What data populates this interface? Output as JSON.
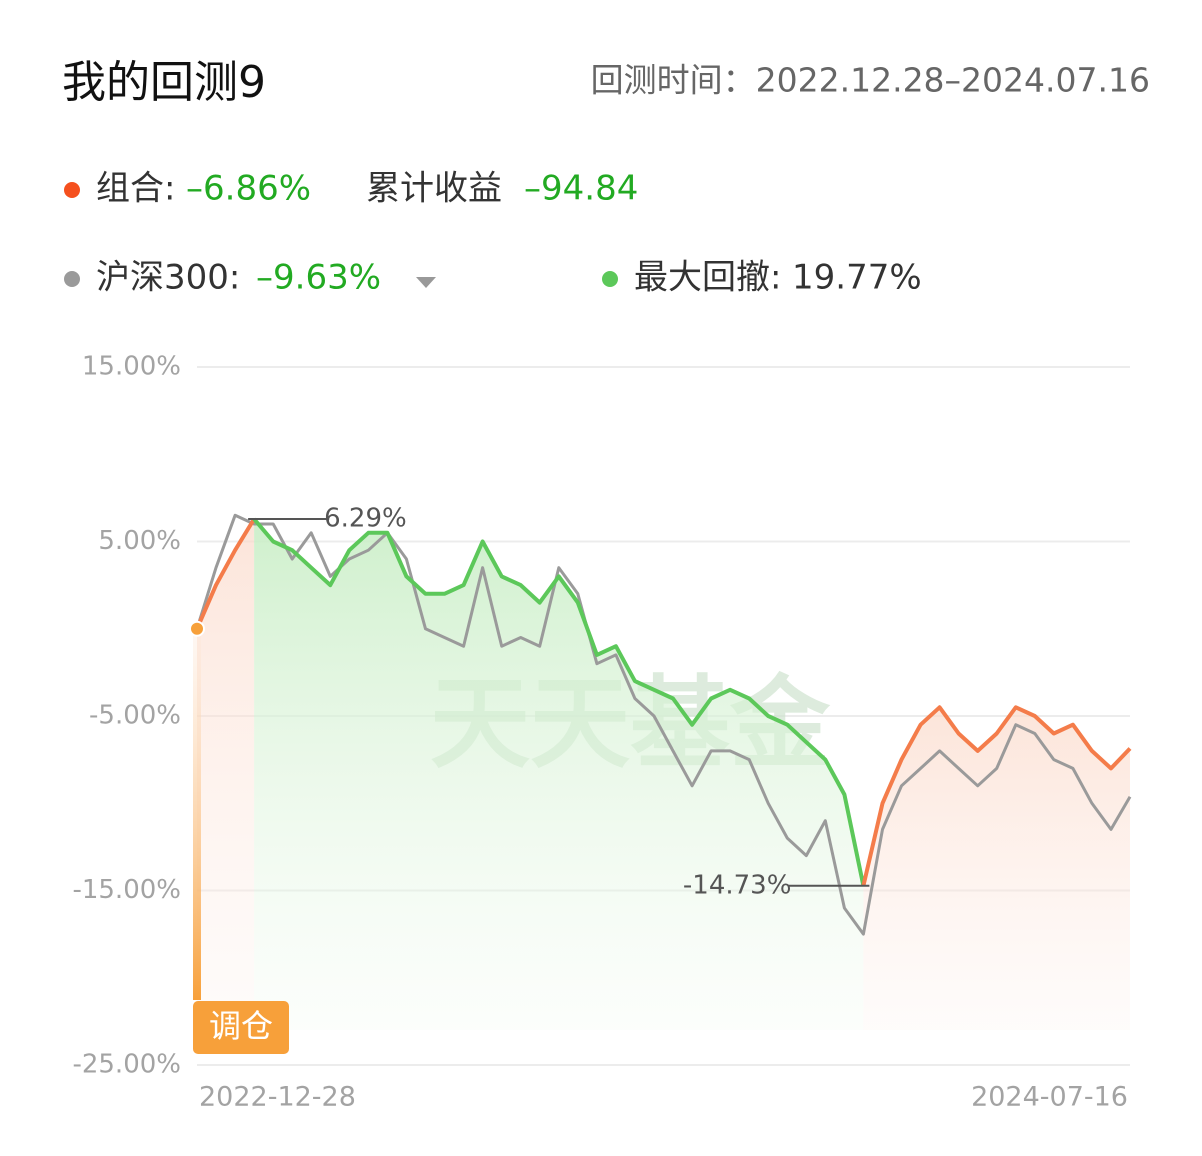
{
  "header": {
    "title": "我的回测9",
    "period": "回测时间：2022.12.28–2024.07.16"
  },
  "legend": {
    "portfolio_label": "组合:",
    "portfolio_return": "–6.86%",
    "cumulative_label": "累计收益",
    "cumulative_value": "–94.84",
    "benchmark_label": "沪深300:",
    "benchmark_return": "–9.63%",
    "drawdown_label": "最大回撤:",
    "drawdown_value": "19.77%"
  },
  "badge": "调仓",
  "watermark": "天天基金",
  "chart_data": {
    "type": "line",
    "categories": [
      "2022-12-28",
      null,
      null,
      null,
      null,
      null,
      null,
      null,
      null,
      null,
      null,
      null,
      null,
      null,
      null,
      null,
      null,
      null,
      null,
      null,
      null,
      null,
      null,
      null,
      null,
      null,
      null,
      null,
      null,
      null,
      null,
      null,
      null,
      null,
      null,
      null,
      null,
      null,
      null,
      null,
      null,
      null,
      null,
      null,
      null,
      null,
      null,
      null,
      null,
      "2024-07-16"
    ],
    "series": [
      {
        "name": "组合",
        "color": "#f47c4a",
        "drawdown_color": "#5cc85a",
        "values": [
          0,
          2.5,
          4.5,
          6.29,
          5,
          4.5,
          3.5,
          2.5,
          4.5,
          5.5,
          5.5,
          3,
          2,
          2,
          2.5,
          5,
          3,
          2.5,
          1.5,
          3,
          1.5,
          -1.5,
          -1,
          -3,
          -3.5,
          -4,
          -5.5,
          -4,
          -3.5,
          -4,
          -5,
          -5.5,
          -6.5,
          -7.5,
          -9.5,
          -14.73,
          -10,
          -7.5,
          -5.5,
          -4.5,
          -6,
          -7,
          -6,
          -4.5,
          -5,
          -6,
          -5.5,
          -7,
          -8,
          -6.86
        ]
      },
      {
        "name": "沪深300",
        "color": "#9a9a9a",
        "values": [
          0,
          3.5,
          6.5,
          6,
          6,
          4,
          5.5,
          3,
          4,
          4.5,
          5.5,
          4,
          0,
          -0.5,
          -1,
          3.5,
          -1,
          -0.5,
          -1,
          3.5,
          2,
          -2,
          -1.5,
          -4,
          -5,
          -7,
          -9,
          -7,
          -7,
          -7.5,
          -10,
          -12,
          -13,
          -11,
          -16,
          -17.5,
          -11.5,
          -9,
          -8,
          -7,
          -8,
          -9,
          -8,
          -5.5,
          -6,
          -7.5,
          -8,
          -10,
          -11.5,
          -9.63
        ]
      }
    ],
    "peak_label": "6.29%",
    "trough_label": "-14.73%",
    "ylim": [
      -25,
      15
    ],
    "yticks": [
      {
        "value": 15,
        "label": "15.00%"
      },
      {
        "value": 5,
        "label": "5.00%"
      },
      {
        "value": -5,
        "label": "-5.00%"
      },
      {
        "value": -15,
        "label": "-15.00%"
      },
      {
        "value": -25,
        "label": "-25.00%"
      }
    ],
    "grid": true
  }
}
